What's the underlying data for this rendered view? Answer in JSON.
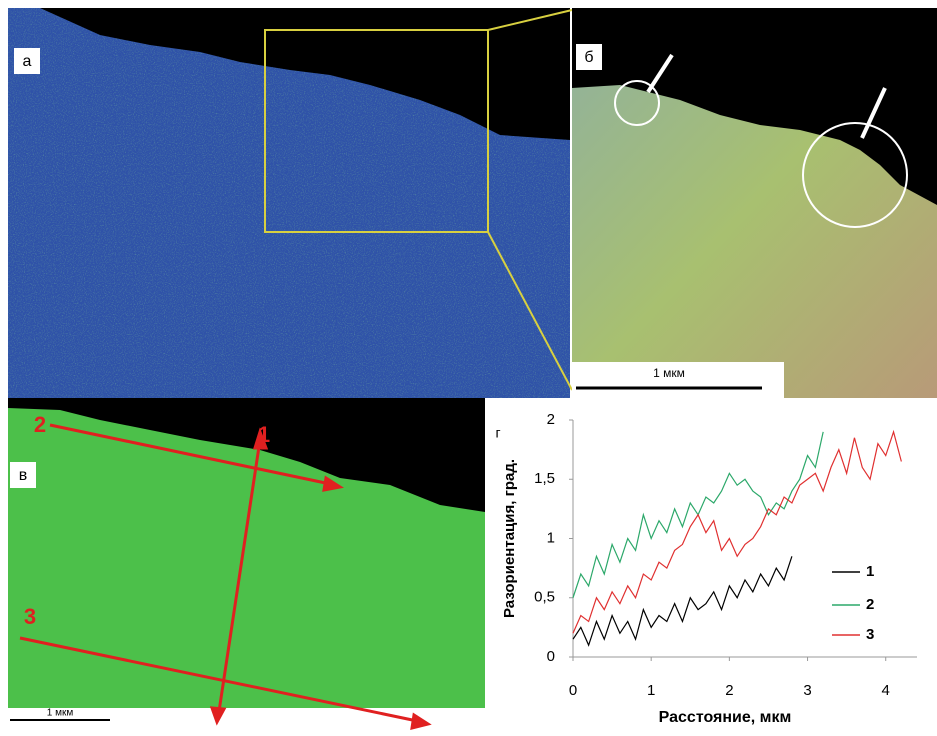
{
  "figure": {
    "panel_labels": [
      "а",
      "б",
      "в",
      "г"
    ],
    "scale_bars": [
      "1 мкм",
      "1 мкм"
    ],
    "line_labels": [
      "1",
      "2",
      "3"
    ]
  },
  "chart_data": {
    "type": "line",
    "xlabel": "Расстояние, мкм",
    "ylabel": "Разориентация, град.",
    "xlim": [
      0,
      4.4
    ],
    "ylim": [
      0,
      2
    ],
    "xticks": [
      0,
      1,
      2,
      3,
      4
    ],
    "yticks": [
      0,
      {
        "value": 0.5,
        "label": "0,5"
      },
      1,
      {
        "value": 1.5,
        "label": "1,5"
      },
      2
    ],
    "legend": "right",
    "series": [
      {
        "name": "1",
        "color": "#000000",
        "x": [
          0,
          0.1,
          0.2,
          0.3,
          0.4,
          0.5,
          0.6,
          0.7,
          0.8,
          0.9,
          1.0,
          1.1,
          1.2,
          1.3,
          1.4,
          1.5,
          1.6,
          1.7,
          1.8,
          1.9,
          2.0,
          2.1,
          2.2,
          2.3,
          2.4,
          2.5,
          2.6,
          2.7,
          2.8
        ],
        "values": [
          0.15,
          0.25,
          0.1,
          0.3,
          0.15,
          0.35,
          0.2,
          0.3,
          0.15,
          0.4,
          0.25,
          0.35,
          0.3,
          0.45,
          0.3,
          0.5,
          0.4,
          0.45,
          0.55,
          0.4,
          0.6,
          0.5,
          0.65,
          0.55,
          0.7,
          0.6,
          0.75,
          0.65,
          0.85
        ]
      },
      {
        "name": "2",
        "color": "#2ca86a",
        "x": [
          0,
          0.1,
          0.2,
          0.3,
          0.4,
          0.5,
          0.6,
          0.7,
          0.8,
          0.9,
          1.0,
          1.1,
          1.2,
          1.3,
          1.4,
          1.5,
          1.6,
          1.7,
          1.8,
          1.9,
          2.0,
          2.1,
          2.2,
          2.3,
          2.4,
          2.5,
          2.6,
          2.7,
          2.8,
          2.9,
          3.0,
          3.1,
          3.2
        ],
        "values": [
          0.5,
          0.7,
          0.6,
          0.85,
          0.7,
          0.95,
          0.8,
          1.0,
          0.9,
          1.2,
          1.0,
          1.15,
          1.05,
          1.25,
          1.1,
          1.3,
          1.2,
          1.35,
          1.3,
          1.4,
          1.55,
          1.45,
          1.5,
          1.4,
          1.35,
          1.2,
          1.3,
          1.25,
          1.4,
          1.5,
          1.7,
          1.6,
          1.9
        ]
      },
      {
        "name": "3",
        "color": "#e03030",
        "x": [
          0,
          0.1,
          0.2,
          0.3,
          0.4,
          0.5,
          0.6,
          0.7,
          0.8,
          0.9,
          1.0,
          1.1,
          1.2,
          1.3,
          1.4,
          1.5,
          1.6,
          1.7,
          1.8,
          1.9,
          2.0,
          2.1,
          2.2,
          2.3,
          2.4,
          2.5,
          2.6,
          2.7,
          2.8,
          2.9,
          3.0,
          3.1,
          3.2,
          3.3,
          3.4,
          3.5,
          3.6,
          3.7,
          3.8,
          3.9,
          4.0,
          4.1,
          4.2
        ],
        "values": [
          0.2,
          0.35,
          0.3,
          0.5,
          0.4,
          0.55,
          0.45,
          0.6,
          0.5,
          0.7,
          0.65,
          0.8,
          0.75,
          0.9,
          0.95,
          1.1,
          1.2,
          1.05,
          1.15,
          0.9,
          1.0,
          0.85,
          0.95,
          1.0,
          1.1,
          1.25,
          1.2,
          1.35,
          1.3,
          1.45,
          1.5,
          1.55,
          1.4,
          1.6,
          1.75,
          1.55,
          1.85,
          1.6,
          1.5,
          1.8,
          1.7,
          1.9,
          1.65
        ]
      }
    ]
  }
}
